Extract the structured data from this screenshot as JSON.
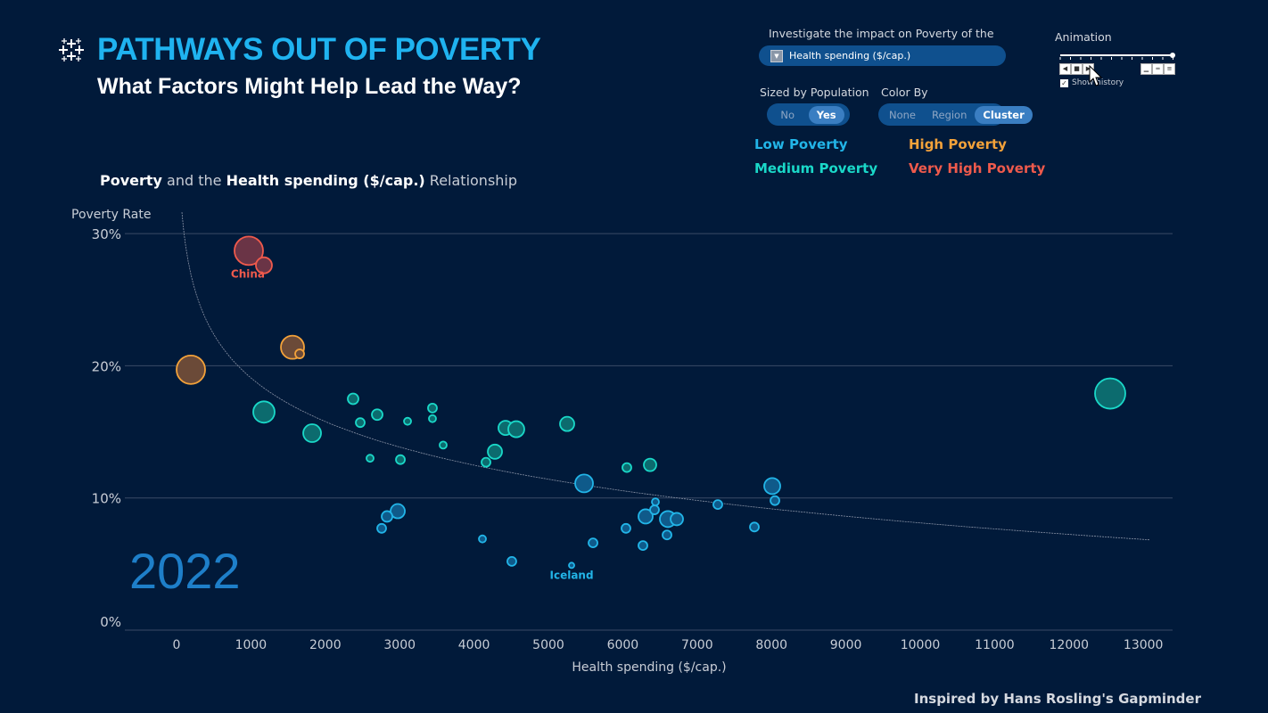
{
  "header": {
    "title": "PATHWAYS OUT OF POVERTY",
    "subtitle": "What Factors Might Help Lead the Way?",
    "logo_icon": "tableau-logo-icon"
  },
  "controls": {
    "investigate_label": "Investigate the impact on Poverty of the",
    "measure_selected": "Health spending ($/cap.)",
    "sized_label": "Sized by Population",
    "sized_options": [
      "No",
      "Yes"
    ],
    "sized_selected": "Yes",
    "color_label": "Color By",
    "color_options": [
      "None",
      "Region",
      "Cluster"
    ],
    "color_selected": "Cluster",
    "animation_label": "Animation",
    "animation_progress": 1.0,
    "show_history_label": "Show history",
    "show_history_checked": true
  },
  "legend": [
    {
      "label": "Low Poverty",
      "color": "#22b5e8"
    },
    {
      "label": "Medium Poverty",
      "color": "#1ad8c8"
    },
    {
      "label": "High Poverty",
      "color": "#f3a23a"
    },
    {
      "label": "Very High Poverty",
      "color": "#ef5a4c"
    }
  ],
  "chart_heading": {
    "part1": "Poverty",
    "part2": " and the ",
    "part3": "Health spending ($/cap.)",
    "part4": " Relationship"
  },
  "year": "2022",
  "credit": "Inspired by Hans Rosling's Gapminder",
  "chart_data": {
    "type": "scatter",
    "xlabel": "Health spending ($/cap.)",
    "ylabel": "Poverty Rate",
    "xlim": [
      -700,
      13400
    ],
    "ylim": [
      0,
      30
    ],
    "xticks": [
      0,
      1000,
      2000,
      3000,
      4000,
      5000,
      6000,
      7000,
      8000,
      9000,
      10000,
      11000,
      12000,
      13000
    ],
    "yticks": [
      {
        "v": 0,
        "label": "0%"
      },
      {
        "v": 10,
        "label": "10%"
      },
      {
        "v": 20,
        "label": "20%"
      },
      {
        "v": 30,
        "label": "30%"
      }
    ],
    "grid": "horizontal",
    "trend_line": {
      "type": "logarithmic",
      "a": 52.0,
      "b": -4.765
    },
    "cluster_colors": {
      "low": "#22b5e8",
      "medium": "#1ad8c8",
      "high": "#f3a23a",
      "veryhigh": "#ef5a4c"
    },
    "points": [
      {
        "x": 971,
        "y": 28.7,
        "size": 16,
        "cluster": "veryhigh",
        "label": "China"
      },
      {
        "x": 1175,
        "y": 27.6,
        "size": 9,
        "cluster": "veryhigh"
      },
      {
        "x": 192,
        "y": 19.7,
        "size": 16,
        "cluster": "high"
      },
      {
        "x": 1559,
        "y": 21.4,
        "size": 13,
        "cluster": "high"
      },
      {
        "x": 1655,
        "y": 20.9,
        "size": 5,
        "cluster": "high"
      },
      {
        "x": 1175,
        "y": 16.5,
        "size": 12,
        "cluster": "medium"
      },
      {
        "x": 1823,
        "y": 14.9,
        "size": 10,
        "cluster": "medium"
      },
      {
        "x": 2374,
        "y": 17.5,
        "size": 6,
        "cluster": "medium"
      },
      {
        "x": 2470,
        "y": 15.7,
        "size": 5,
        "cluster": "medium"
      },
      {
        "x": 2698,
        "y": 16.3,
        "size": 6,
        "cluster": "medium"
      },
      {
        "x": 2602,
        "y": 13.0,
        "size": 4,
        "cluster": "medium"
      },
      {
        "x": 3010,
        "y": 12.9,
        "size": 5,
        "cluster": "medium"
      },
      {
        "x": 3106,
        "y": 15.8,
        "size": 4,
        "cluster": "medium"
      },
      {
        "x": 3441,
        "y": 16.8,
        "size": 5,
        "cluster": "medium"
      },
      {
        "x": 3441,
        "y": 16.0,
        "size": 4,
        "cluster": "medium"
      },
      {
        "x": 3585,
        "y": 14.0,
        "size": 4,
        "cluster": "medium"
      },
      {
        "x": 4161,
        "y": 12.7,
        "size": 5,
        "cluster": "medium"
      },
      {
        "x": 4281,
        "y": 13.5,
        "size": 8,
        "cluster": "medium"
      },
      {
        "x": 4424,
        "y": 15.3,
        "size": 8,
        "cluster": "medium"
      },
      {
        "x": 4568,
        "y": 15.2,
        "size": 9,
        "cluster": "medium"
      },
      {
        "x": 5252,
        "y": 15.6,
        "size": 8,
        "cluster": "medium"
      },
      {
        "x": 6055,
        "y": 12.3,
        "size": 5,
        "cluster": "medium"
      },
      {
        "x": 6367,
        "y": 12.5,
        "size": 7,
        "cluster": "medium"
      },
      {
        "x": 12554,
        "y": 17.9,
        "size": 17,
        "cluster": "medium"
      },
      {
        "x": 5480,
        "y": 11.1,
        "size": 10,
        "cluster": "low"
      },
      {
        "x": 8010,
        "y": 10.9,
        "size": 9,
        "cluster": "low"
      },
      {
        "x": 8046,
        "y": 9.8,
        "size": 5,
        "cluster": "low"
      },
      {
        "x": 7278,
        "y": 9.5,
        "size": 5,
        "cluster": "low"
      },
      {
        "x": 2974,
        "y": 9.0,
        "size": 8,
        "cluster": "low"
      },
      {
        "x": 2830,
        "y": 8.6,
        "size": 6,
        "cluster": "low"
      },
      {
        "x": 2758,
        "y": 7.7,
        "size": 5,
        "cluster": "low"
      },
      {
        "x": 4113,
        "y": 6.9,
        "size": 4,
        "cluster": "low"
      },
      {
        "x": 4508,
        "y": 5.2,
        "size": 5,
        "cluster": "low"
      },
      {
        "x": 5312,
        "y": 4.9,
        "size": 3,
        "cluster": "low",
        "label": "Iceland"
      },
      {
        "x": 5600,
        "y": 6.6,
        "size": 5,
        "cluster": "low"
      },
      {
        "x": 6043,
        "y": 7.7,
        "size": 5,
        "cluster": "low"
      },
      {
        "x": 6307,
        "y": 8.6,
        "size": 8,
        "cluster": "low"
      },
      {
        "x": 6427,
        "y": 9.1,
        "size": 5,
        "cluster": "low"
      },
      {
        "x": 6439,
        "y": 9.7,
        "size": 4,
        "cluster": "low"
      },
      {
        "x": 6607,
        "y": 8.4,
        "size": 9,
        "cluster": "low"
      },
      {
        "x": 6727,
        "y": 8.4,
        "size": 7,
        "cluster": "low"
      },
      {
        "x": 6595,
        "y": 7.2,
        "size": 5,
        "cluster": "low"
      },
      {
        "x": 6271,
        "y": 6.4,
        "size": 5,
        "cluster": "low"
      },
      {
        "x": 7770,
        "y": 7.8,
        "size": 5,
        "cluster": "low"
      }
    ]
  }
}
